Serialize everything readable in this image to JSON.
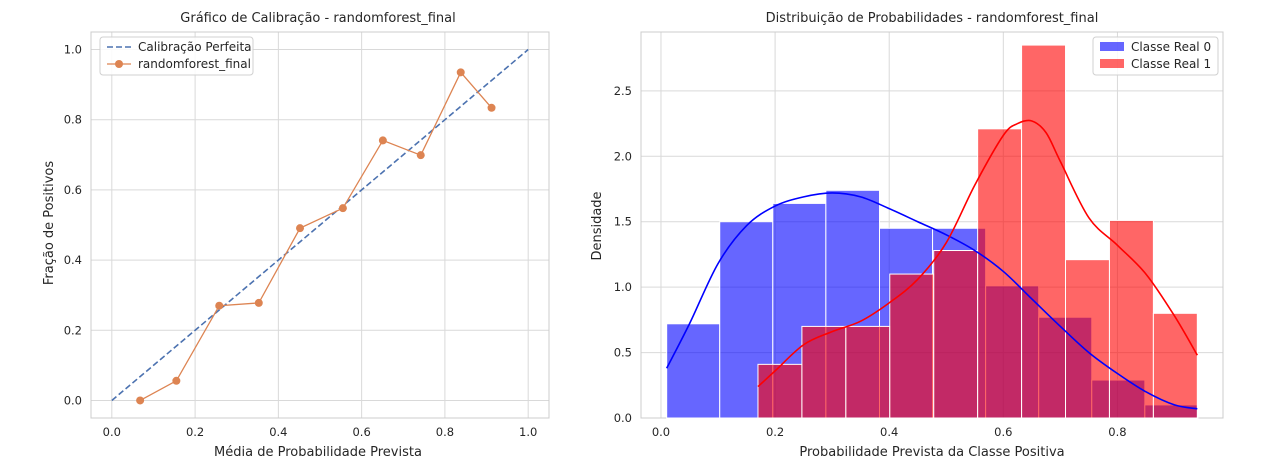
{
  "colors": {
    "background": "#ffffff",
    "plot_bg": "#ffffff",
    "grid": "#d9d9d9",
    "perfect": "#4c72b0",
    "model": "#dd8452",
    "class0": "#0000ff",
    "class1": "#ff0000"
  },
  "chart_data": [
    {
      "type": "line",
      "title": "Gráfico de Calibração - randomforest_final",
      "xlabel": "Média de Probabilidade Prevista",
      "ylabel": "Fração de Positivos",
      "xlim": [
        -0.05,
        1.05
      ],
      "ylim": [
        -0.05,
        1.05
      ],
      "xticks": [
        0.0,
        0.2,
        0.4,
        0.6,
        0.8,
        1.0
      ],
      "xtick_labels": [
        "0.0",
        "0.2",
        "0.4",
        "0.6",
        "0.8",
        "1.0"
      ],
      "yticks": [
        0.0,
        0.2,
        0.4,
        0.6,
        0.8,
        1.0
      ],
      "ytick_labels": [
        "0.0",
        "0.2",
        "0.4",
        "0.6",
        "0.8",
        "1.0"
      ],
      "grid": true,
      "legend_position": "top-left",
      "series": [
        {
          "name": "Calibração Perfeita",
          "style": "dashed",
          "x": [
            0.0,
            1.0
          ],
          "y": [
            0.0,
            1.0
          ]
        },
        {
          "name": "randomforest_final",
          "style": "line-markers",
          "x": [
            0.068,
            0.155,
            0.258,
            0.353,
            0.452,
            0.555,
            0.651,
            0.742,
            0.838,
            0.912
          ],
          "y": [
            0.0,
            0.056,
            0.27,
            0.278,
            0.491,
            0.548,
            0.741,
            0.699,
            0.935,
            0.834
          ]
        }
      ]
    },
    {
      "type": "histogram",
      "title": "Distribuição de Probabilidades - randomforest_final",
      "xlabel": "Probabilidade Prevista da Classe Positiva",
      "ylabel": "Densidade",
      "xlim": [
        -0.035,
        0.985
      ],
      "ylim": [
        0,
        2.95
      ],
      "xticks": [
        0.0,
        0.2,
        0.4,
        0.6,
        0.8
      ],
      "xtick_labels": [
        "0.0",
        "0.2",
        "0.4",
        "0.6",
        "0.8"
      ],
      "yticks": [
        0.0,
        0.5,
        1.0,
        1.5,
        2.0,
        2.5
      ],
      "ytick_labels": [
        "0.0",
        "0.5",
        "1.0",
        "1.5",
        "2.0",
        "2.5"
      ],
      "grid": true,
      "legend_position": "top-right",
      "series": [
        {
          "name": "Classe Real 0",
          "bin_edges": [
            0.01,
            0.103,
            0.196,
            0.289,
            0.383,
            0.476,
            0.569,
            0.662,
            0.755,
            0.848,
            0.941
          ],
          "densities": [
            0.72,
            1.5,
            1.64,
            1.74,
            1.45,
            1.45,
            1.01,
            0.77,
            0.29,
            0.1
          ],
          "kde_x": [
            0.01,
            0.05,
            0.1,
            0.15,
            0.2,
            0.25,
            0.3,
            0.35,
            0.4,
            0.45,
            0.5,
            0.55,
            0.6,
            0.65,
            0.7,
            0.75,
            0.8,
            0.85,
            0.9,
            0.94
          ],
          "kde_y": [
            0.38,
            0.72,
            1.18,
            1.47,
            1.62,
            1.69,
            1.72,
            1.69,
            1.6,
            1.5,
            1.4,
            1.28,
            1.12,
            0.91,
            0.7,
            0.5,
            0.34,
            0.2,
            0.1,
            0.07
          ]
        },
        {
          "name": "Classe Real 1",
          "bin_edges": [
            0.17,
            0.247,
            0.324,
            0.401,
            0.478,
            0.555,
            0.632,
            0.709,
            0.786,
            0.863,
            0.94
          ],
          "densities": [
            0.41,
            0.7,
            0.7,
            1.1,
            1.28,
            2.21,
            2.85,
            1.21,
            1.51,
            0.8
          ],
          "kde_x": [
            0.17,
            0.2,
            0.25,
            0.3,
            0.35,
            0.4,
            0.45,
            0.5,
            0.55,
            0.6,
            0.625,
            0.65,
            0.675,
            0.7,
            0.75,
            0.8,
            0.85,
            0.9,
            0.94
          ],
          "kde_y": [
            0.24,
            0.36,
            0.56,
            0.66,
            0.74,
            0.88,
            1.06,
            1.34,
            1.78,
            2.16,
            2.25,
            2.27,
            2.18,
            1.96,
            1.53,
            1.32,
            1.1,
            0.78,
            0.48
          ]
        }
      ]
    }
  ]
}
